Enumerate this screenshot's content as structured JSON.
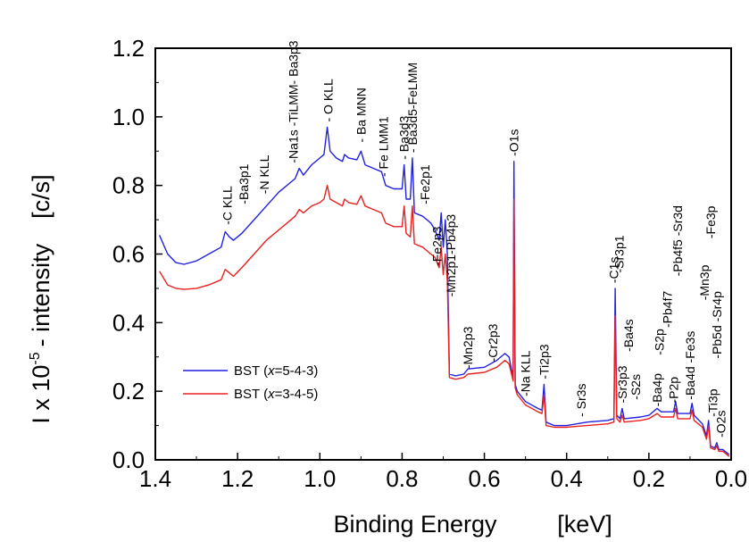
{
  "chart_data": {
    "type": "line",
    "title": "",
    "xlabel": "Binding Energy",
    "xlabel_unit": "[keV]",
    "ylabel": "I x 10",
    "ylabel_exponent": "-5",
    "ylabel_suffix": "- intensity",
    "ylabel_unit": "[c/s]",
    "xlim": [
      1.4,
      0.0
    ],
    "ylim": [
      0.0,
      1.2
    ],
    "x_reversed": true,
    "x_ticks": [
      "1.4",
      "1.2",
      "1.0",
      "0.8",
      "0.6",
      "0.4",
      "0.2",
      "0.0"
    ],
    "x_tick_values": [
      1.4,
      1.2,
      1.0,
      0.8,
      0.6,
      0.4,
      0.2,
      0.0
    ],
    "y_ticks": [
      "0.0",
      "0.2",
      "0.4",
      "0.6",
      "0.8",
      "1.0",
      "1.2"
    ],
    "y_tick_values": [
      0.0,
      0.2,
      0.4,
      0.6,
      0.8,
      1.0,
      1.2
    ],
    "grid": false,
    "legend_position": "lower-left",
    "series": [
      {
        "name": "BST (x=5-4-3)",
        "legend_prefix": "BST (",
        "legend_italic": "x",
        "legend_suffix": "=5-4-3)",
        "color": "#2020e0",
        "points": [
          [
            1.39,
            0.655
          ],
          [
            1.37,
            0.6
          ],
          [
            1.35,
            0.575
          ],
          [
            1.33,
            0.57
          ],
          [
            1.3,
            0.58
          ],
          [
            1.27,
            0.6
          ],
          [
            1.24,
            0.62
          ],
          [
            1.23,
            0.665
          ],
          [
            1.22,
            0.65
          ],
          [
            1.21,
            0.64
          ],
          [
            1.19,
            0.66
          ],
          [
            1.16,
            0.7
          ],
          [
            1.13,
            0.74
          ],
          [
            1.1,
            0.78
          ],
          [
            1.06,
            0.82
          ],
          [
            1.05,
            0.85
          ],
          [
            1.04,
            0.83
          ],
          [
            1.02,
            0.86
          ],
          [
            1.0,
            0.88
          ],
          [
            0.99,
            0.89
          ],
          [
            0.982,
            0.97
          ],
          [
            0.975,
            0.9
          ],
          [
            0.96,
            0.88
          ],
          [
            0.945,
            0.87
          ],
          [
            0.94,
            0.89
          ],
          [
            0.93,
            0.88
          ],
          [
            0.91,
            0.875
          ],
          [
            0.9,
            0.9
          ],
          [
            0.89,
            0.86
          ],
          [
            0.87,
            0.85
          ],
          [
            0.85,
            0.84
          ],
          [
            0.84,
            0.8
          ],
          [
            0.82,
            0.79
          ],
          [
            0.8,
            0.79
          ],
          [
            0.795,
            0.86
          ],
          [
            0.79,
            0.76
          ],
          [
            0.78,
            0.76
          ],
          [
            0.775,
            0.88
          ],
          [
            0.77,
            0.72
          ],
          [
            0.75,
            0.71
          ],
          [
            0.73,
            0.69
          ],
          [
            0.72,
            0.67
          ],
          [
            0.71,
            0.64
          ],
          [
            0.705,
            0.72
          ],
          [
            0.7,
            0.62
          ],
          [
            0.695,
            0.7
          ],
          [
            0.69,
            0.6
          ],
          [
            0.685,
            0.25
          ],
          [
            0.67,
            0.245
          ],
          [
            0.65,
            0.25
          ],
          [
            0.64,
            0.265
          ],
          [
            0.6,
            0.27
          ],
          [
            0.57,
            0.29
          ],
          [
            0.55,
            0.31
          ],
          [
            0.54,
            0.3
          ],
          [
            0.53,
            0.24
          ],
          [
            0.528,
            0.87
          ],
          [
            0.525,
            0.22
          ],
          [
            0.52,
            0.2
          ],
          [
            0.5,
            0.17
          ],
          [
            0.47,
            0.15
          ],
          [
            0.46,
            0.145
          ],
          [
            0.455,
            0.22
          ],
          [
            0.45,
            0.11
          ],
          [
            0.43,
            0.1
          ],
          [
            0.4,
            0.1
          ],
          [
            0.35,
            0.11
          ],
          [
            0.3,
            0.115
          ],
          [
            0.285,
            0.12
          ],
          [
            0.282,
            0.5
          ],
          [
            0.278,
            0.13
          ],
          [
            0.27,
            0.12
          ],
          [
            0.265,
            0.15
          ],
          [
            0.26,
            0.12
          ],
          [
            0.22,
            0.125
          ],
          [
            0.2,
            0.13
          ],
          [
            0.18,
            0.15
          ],
          [
            0.17,
            0.14
          ],
          [
            0.14,
            0.14
          ],
          [
            0.135,
            0.17
          ],
          [
            0.13,
            0.135
          ],
          [
            0.1,
            0.135
          ],
          [
            0.095,
            0.165
          ],
          [
            0.09,
            0.13
          ],
          [
            0.07,
            0.105
          ],
          [
            0.06,
            0.07
          ],
          [
            0.055,
            0.115
          ],
          [
            0.05,
            0.04
          ],
          [
            0.04,
            0.035
          ],
          [
            0.035,
            0.05
          ],
          [
            0.03,
            0.03
          ],
          [
            0.02,
            0.03
          ],
          [
            0.01,
            0.02
          ],
          [
            0.005,
            0.015
          ]
        ]
      },
      {
        "name": "BST (x=3-4-5)",
        "legend_prefix": "BST (",
        "legend_italic": "x",
        "legend_suffix": "=3-4-5)",
        "color": "#e82020",
        "points": [
          [
            1.39,
            0.55
          ],
          [
            1.37,
            0.51
          ],
          [
            1.35,
            0.5
          ],
          [
            1.33,
            0.497
          ],
          [
            1.3,
            0.5
          ],
          [
            1.27,
            0.51
          ],
          [
            1.24,
            0.525
          ],
          [
            1.23,
            0.555
          ],
          [
            1.22,
            0.545
          ],
          [
            1.21,
            0.535
          ],
          [
            1.19,
            0.56
          ],
          [
            1.16,
            0.6
          ],
          [
            1.13,
            0.64
          ],
          [
            1.1,
            0.67
          ],
          [
            1.06,
            0.71
          ],
          [
            1.05,
            0.73
          ],
          [
            1.04,
            0.72
          ],
          [
            1.02,
            0.74
          ],
          [
            1.0,
            0.75
          ],
          [
            0.99,
            0.76
          ],
          [
            0.982,
            0.8
          ],
          [
            0.975,
            0.76
          ],
          [
            0.96,
            0.75
          ],
          [
            0.945,
            0.74
          ],
          [
            0.94,
            0.76
          ],
          [
            0.93,
            0.75
          ],
          [
            0.91,
            0.745
          ],
          [
            0.9,
            0.77
          ],
          [
            0.89,
            0.74
          ],
          [
            0.87,
            0.73
          ],
          [
            0.85,
            0.72
          ],
          [
            0.84,
            0.69
          ],
          [
            0.82,
            0.68
          ],
          [
            0.8,
            0.68
          ],
          [
            0.795,
            0.74
          ],
          [
            0.79,
            0.66
          ],
          [
            0.78,
            0.65
          ],
          [
            0.775,
            0.74
          ],
          [
            0.77,
            0.63
          ],
          [
            0.75,
            0.62
          ],
          [
            0.73,
            0.6
          ],
          [
            0.72,
            0.59
          ],
          [
            0.71,
            0.56
          ],
          [
            0.705,
            0.62
          ],
          [
            0.7,
            0.54
          ],
          [
            0.695,
            0.6
          ],
          [
            0.69,
            0.52
          ],
          [
            0.685,
            0.24
          ],
          [
            0.67,
            0.235
          ],
          [
            0.65,
            0.24
          ],
          [
            0.64,
            0.25
          ],
          [
            0.6,
            0.255
          ],
          [
            0.57,
            0.27
          ],
          [
            0.55,
            0.29
          ],
          [
            0.54,
            0.28
          ],
          [
            0.53,
            0.23
          ],
          [
            0.528,
            0.76
          ],
          [
            0.525,
            0.21
          ],
          [
            0.52,
            0.19
          ],
          [
            0.5,
            0.16
          ],
          [
            0.47,
            0.14
          ],
          [
            0.46,
            0.135
          ],
          [
            0.455,
            0.19
          ],
          [
            0.45,
            0.1
          ],
          [
            0.43,
            0.095
          ],
          [
            0.4,
            0.095
          ],
          [
            0.35,
            0.1
          ],
          [
            0.3,
            0.105
          ],
          [
            0.285,
            0.11
          ],
          [
            0.282,
            0.42
          ],
          [
            0.278,
            0.12
          ],
          [
            0.27,
            0.11
          ],
          [
            0.265,
            0.13
          ],
          [
            0.26,
            0.11
          ],
          [
            0.22,
            0.115
          ],
          [
            0.2,
            0.12
          ],
          [
            0.18,
            0.135
          ],
          [
            0.17,
            0.125
          ],
          [
            0.14,
            0.125
          ],
          [
            0.135,
            0.15
          ],
          [
            0.13,
            0.12
          ],
          [
            0.1,
            0.12
          ],
          [
            0.095,
            0.145
          ],
          [
            0.09,
            0.115
          ],
          [
            0.07,
            0.095
          ],
          [
            0.06,
            0.06
          ],
          [
            0.055,
            0.1
          ],
          [
            0.05,
            0.035
          ],
          [
            0.04,
            0.03
          ],
          [
            0.035,
            0.04
          ],
          [
            0.03,
            0.025
          ],
          [
            0.02,
            0.025
          ],
          [
            0.01,
            0.015
          ],
          [
            0.005,
            0.01
          ]
        ]
      }
    ],
    "annotations": [
      {
        "text": "-C KLL",
        "x": 1.225,
        "y": 0.68
      },
      {
        "text": "-Ba3p1",
        "x": 1.185,
        "y": 0.74
      },
      {
        "text": "-N KLL",
        "x": 1.135,
        "y": 0.77
      },
      {
        "text": "-Na1s -TiLMM- Ba3p3",
        "x": 1.065,
        "y": 0.86
      },
      {
        "text": "- O KLL",
        "x": 0.98,
        "y": 0.98
      },
      {
        "text": "- Ba MNN",
        "x": 0.9,
        "y": 0.92
      },
      {
        "text": "- Fe LMM1",
        "x": 0.845,
        "y": 0.82
      },
      {
        "text": "- Ba3d3",
        "x": 0.795,
        "y": 0.87
      },
      {
        "text": "- Ba3d5-FeLMM",
        "x": 0.775,
        "y": 0.89
      },
      {
        "text": "-Fe2p1",
        "x": 0.745,
        "y": 0.74
      },
      {
        "text": "-Fe2p3",
        "x": 0.715,
        "y": 0.56
      },
      {
        "text": "-Mn2p1-Pb4p3",
        "x": 0.682,
        "y": 0.47
      },
      {
        "text": "-Mn2p3",
        "x": 0.64,
        "y": 0.26
      },
      {
        "text": "-Cr2p3",
        "x": 0.58,
        "y": 0.28
      },
      {
        "text": "-O1s",
        "x": 0.528,
        "y": 0.88
      },
      {
        "text": "-Na KLL",
        "x": 0.5,
        "y": 0.18
      },
      {
        "text": "-Ti2p3",
        "x": 0.455,
        "y": 0.23
      },
      {
        "text": "- Sr3s",
        "x": 0.365,
        "y": 0.12
      },
      {
        "text": "-C1s",
        "x": 0.285,
        "y": 0.51
      },
      {
        "text": "-Sr3p1",
        "x": 0.272,
        "y": 0.54
      },
      {
        "text": "-Sr3p3",
        "x": 0.265,
        "y": 0.16
      },
      {
        "text": "-Ba4s",
        "x": 0.25,
        "y": 0.31
      },
      {
        "text": "-S2s",
        "x": 0.232,
        "y": 0.17
      },
      {
        "text": "-S2p",
        "x": 0.175,
        "y": 0.3
      },
      {
        "text": "-Ba4p",
        "x": 0.18,
        "y": 0.15
      },
      {
        "text": "-Pb4f7",
        "x": 0.155,
        "y": 0.38
      },
      {
        "text": "-P2p",
        "x": 0.14,
        "y": 0.16
      },
      {
        "text": "-Pb4f5 -Sr3d",
        "x": 0.13,
        "y": 0.53
      },
      {
        "text": "-Ba4d -Fe3s",
        "x": 0.1,
        "y": 0.17
      },
      {
        "text": "-Mn3p",
        "x": 0.065,
        "y": 0.46
      },
      {
        "text": "-Fe3p",
        "x": 0.05,
        "y": 0.64
      },
      {
        "text": "-Ti3p",
        "x": 0.045,
        "y": 0.12
      },
      {
        "text": "-Pb5d -Sr4p",
        "x": 0.035,
        "y": 0.29
      },
      {
        "text": "-O2s",
        "x": 0.025,
        "y": 0.06
      }
    ]
  }
}
